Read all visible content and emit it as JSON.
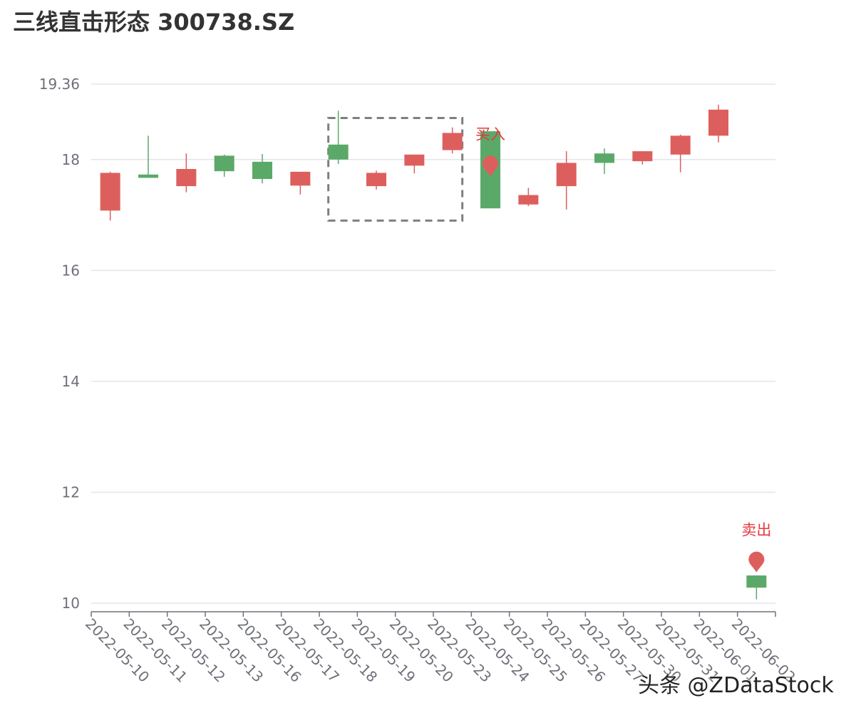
{
  "chart_data": {
    "type": "candlestick",
    "title": "三线直击形态 300738.SZ",
    "categories": [
      "2022-05-10",
      "2022-05-11",
      "2022-05-12",
      "2022-05-13",
      "2022-05-16",
      "2022-05-17",
      "2022-05-18",
      "2022-05-19",
      "2022-05-20",
      "2022-05-23",
      "2022-05-24",
      "2022-05-25",
      "2022-05-26",
      "2022-05-27",
      "2022-05-30",
      "2022-05-31",
      "2022-06-01",
      "2022-06-02"
    ],
    "candles": [
      {
        "open": 17.08,
        "close": 17.76,
        "low": 16.9,
        "high": 17.78
      },
      {
        "open": 17.73,
        "close": 17.67,
        "low": 17.67,
        "high": 18.43
      },
      {
        "open": 17.52,
        "close": 17.83,
        "low": 17.41,
        "high": 18.11
      },
      {
        "open": 18.07,
        "close": 17.79,
        "low": 17.69,
        "high": 18.09
      },
      {
        "open": 17.96,
        "close": 17.65,
        "low": 17.57,
        "high": 18.1
      },
      {
        "open": 17.53,
        "close": 17.78,
        "low": 17.37,
        "high": 17.78
      },
      {
        "open": 18.27,
        "close": 18.0,
        "low": 17.92,
        "high": 18.88
      },
      {
        "open": 17.52,
        "close": 17.76,
        "low": 17.46,
        "high": 17.8
      },
      {
        "open": 17.89,
        "close": 18.09,
        "low": 17.75,
        "high": 18.09
      },
      {
        "open": 18.17,
        "close": 18.48,
        "low": 18.11,
        "high": 18.58
      },
      {
        "open": 18.51,
        "close": 17.12,
        "low": 17.12,
        "high": 18.51
      },
      {
        "open": 17.19,
        "close": 17.36,
        "low": 17.16,
        "high": 17.49
      },
      {
        "open": 17.52,
        "close": 17.94,
        "low": 17.1,
        "high": 18.15
      },
      {
        "open": 18.11,
        "close": 17.94,
        "low": 17.74,
        "high": 18.2
      },
      {
        "open": 17.97,
        "close": 18.15,
        "low": 17.91,
        "high": 18.15
      },
      {
        "open": 18.09,
        "close": 18.43,
        "low": 17.77,
        "high": 18.45
      },
      {
        "open": 18.43,
        "close": 18.9,
        "low": 18.31,
        "high": 18.99
      },
      {
        "open": 10.5,
        "close": 10.28,
        "low": 10.07,
        "high": 10.5
      }
    ],
    "y_ticks": [
      "10",
      "12",
      "14",
      "16",
      "18",
      "19.36"
    ],
    "ylim": [
      10,
      19.36
    ],
    "colors": {
      "up": "#dd5f5d",
      "down": "#5ba968",
      "grid": "#e3e5ea",
      "axis": "#6e7079",
      "markpoint": "#dd5f5d",
      "highlight": "#7f7f7f"
    },
    "highlight_box": {
      "from": "2022-05-18",
      "to": "2022-05-23",
      "low": 16.9,
      "high": 18.75
    },
    "mark_points": [
      {
        "label": "买入",
        "category": "2022-05-24",
        "value": 17.89
      },
      {
        "label": "卖出",
        "category": "2022-06-02",
        "value": 10.75
      }
    ],
    "grid": true,
    "legend": "none"
  },
  "watermark": "头条 @ZDataStock"
}
